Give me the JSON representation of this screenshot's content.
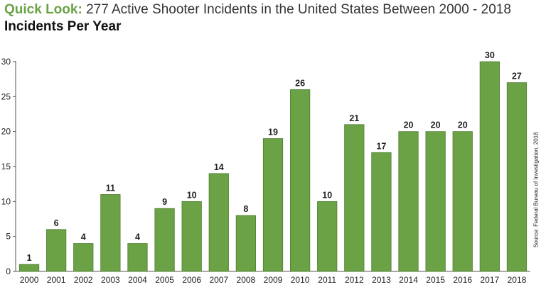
{
  "header": {
    "title_lead": "Quick Look:",
    "title_rest": "277 Active Shooter Incidents in the United States Between 2000 - 2018",
    "subtitle": "Incidents Per Year"
  },
  "source": "Source: Federal Bureau of Investigation, 2018",
  "colors": {
    "bar": "#6aa245",
    "bar_edge": "#4f7f31",
    "title_accent": "#6aa245",
    "axis": "#555555"
  },
  "chart_data": {
    "type": "bar",
    "categories": [
      "2000",
      "2001",
      "2002",
      "2003",
      "2004",
      "2005",
      "2006",
      "2007",
      "2008",
      "2009",
      "2010",
      "2011",
      "2012",
      "2013",
      "2014",
      "2015",
      "2016",
      "2017",
      "2018"
    ],
    "values": [
      1,
      6,
      4,
      11,
      4,
      9,
      10,
      14,
      8,
      19,
      26,
      10,
      21,
      17,
      20,
      20,
      20,
      30,
      27
    ],
    "title": "Quick Look: 277 Active Shooter Incidents in the United States Between 2000 - 2018",
    "subtitle": "Incidents Per Year",
    "ylim": [
      0,
      30
    ],
    "yticks": [
      0,
      5,
      10,
      15,
      20,
      25,
      30
    ],
    "grid": false,
    "data_labels": true
  }
}
